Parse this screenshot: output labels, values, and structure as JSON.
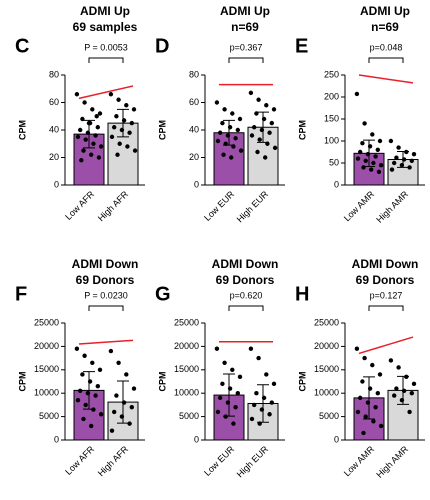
{
  "chart_data": [
    {
      "type": "bar",
      "panel": "C",
      "title": [
        "ADMI Up",
        "69 samples"
      ],
      "ylabel": "CPM",
      "annotation": "P = 0.0053",
      "categories": [
        "Low AFR",
        "High AFR"
      ],
      "values": [
        37,
        45
      ],
      "errors": [
        10,
        10
      ],
      "colors": [
        "#9b4fa8",
        "#d9d9d9"
      ],
      "points": [
        [
          66,
          60,
          55,
          52,
          48,
          45,
          42,
          40,
          38,
          36,
          35,
          33,
          30,
          28,
          25,
          22,
          20,
          18,
          45,
          50
        ],
        [
          66,
          62,
          58,
          55,
          50,
          47,
          45,
          42,
          40,
          38,
          35,
          30,
          28,
          25,
          22
        ]
      ],
      "trend_line": {
        "color": "#e8202a",
        "values": [
          63,
          72
        ]
      },
      "ylim": [
        0,
        80
      ],
      "yticks": [
        0,
        20,
        40,
        60,
        80
      ]
    },
    {
      "type": "bar",
      "panel": "D",
      "title": [
        "ADMI Up",
        "n=69"
      ],
      "ylabel": "CPM",
      "annotation": "p=0.367",
      "categories": [
        "Low EUR",
        "High EUR"
      ],
      "values": [
        38,
        42
      ],
      "errors": [
        9,
        11
      ],
      "colors": [
        "#9b4fa8",
        "#d9d9d9"
      ],
      "points": [
        [
          60,
          55,
          52,
          48,
          45,
          42,
          40,
          38,
          36,
          34,
          32,
          30,
          28,
          25,
          22,
          20
        ],
        [
          67,
          62,
          58,
          55,
          52,
          48,
          45,
          42,
          40,
          38,
          36,
          33,
          30,
          27,
          24,
          20
        ]
      ],
      "trend_line": {
        "color": "#e8202a",
        "values": [
          73,
          73
        ]
      },
      "ylim": [
        0,
        80
      ],
      "yticks": [
        0,
        20,
        40,
        60,
        80
      ]
    },
    {
      "type": "bar",
      "panel": "E",
      "title": [
        "ADMI Up",
        "n=69"
      ],
      "ylabel": "CPM",
      "annotation": "p=0.048",
      "categories": [
        "Low AMR",
        "High AMR"
      ],
      "values": [
        72,
        58
      ],
      "errors": [
        30,
        18
      ],
      "colors": [
        "#9b4fa8",
        "#d9d9d9"
      ],
      "points": [
        [
          207,
          140,
          115,
          100,
          95,
          88,
          80,
          75,
          70,
          65,
          60,
          55,
          50,
          45,
          40,
          35,
          30
        ],
        [
          100,
          85,
          75,
          70,
          62,
          58,
          55,
          50,
          45,
          40,
          35
        ]
      ],
      "trend_line": {
        "color": "#e8202a",
        "values": [
          250,
          232
        ]
      },
      "ylim": [
        0,
        250
      ],
      "yticks": [
        0,
        50,
        100,
        150,
        200,
        250
      ]
    },
    {
      "type": "bar",
      "panel": "F",
      "title": [
        "ADMI Down",
        "69 Donors"
      ],
      "ylabel": "CPM",
      "annotation": "P = 0.0230",
      "categories": [
        "Low AFR",
        "High AFR"
      ],
      "values": [
        10600,
        8100
      ],
      "errors": [
        4000,
        4500
      ],
      "colors": [
        "#9b4fa8",
        "#d9d9d9"
      ],
      "points": [
        [
          19500,
          18000,
          16500,
          15000,
          14000,
          12500,
          11500,
          10500,
          10000,
          9500,
          8500,
          7500,
          6500,
          5500,
          4500,
          3000
        ],
        [
          19000,
          16500,
          14000,
          11000,
          9500,
          8000,
          7000,
          6000,
          5000,
          3500,
          2000
        ]
      ],
      "trend_line": {
        "color": "#e8202a",
        "values": [
          20500,
          21300
        ]
      },
      "ylim": [
        0,
        25000
      ],
      "yticks": [
        0,
        5000,
        10000,
        15000,
        20000,
        25000
      ]
    },
    {
      "type": "bar",
      "panel": "G",
      "title": [
        "ADMI Down",
        "69 Donors"
      ],
      "ylabel": "CPM",
      "annotation": "p=0.620",
      "categories": [
        "Low EUR",
        "High EUR"
      ],
      "values": [
        9600,
        7800
      ],
      "errors": [
        4500,
        4000
      ],
      "colors": [
        "#9b4fa8",
        "#d9d9d9"
      ],
      "points": [
        [
          19500,
          16500,
          15000,
          13500,
          12000,
          11000,
          10000,
          9000,
          8000,
          7000,
          6000,
          5000,
          3500
        ],
        [
          19500,
          17500,
          14000,
          12000,
          10000,
          9000,
          8000,
          7500,
          6500,
          5500,
          4500,
          3500
        ]
      ],
      "trend_line": {
        "color": "#e8202a",
        "values": [
          21000,
          21000
        ]
      },
      "ylim": [
        0,
        25000
      ],
      "yticks": [
        0,
        5000,
        10000,
        15000,
        20000,
        25000
      ]
    },
    {
      "type": "bar",
      "panel": "H",
      "title": [
        "ADMI Down",
        "69 Donors"
      ],
      "ylabel": "CPM",
      "annotation": "p=0.127",
      "categories": [
        "Low AMR",
        "High AMR"
      ],
      "values": [
        9000,
        10600
      ],
      "errors": [
        4500,
        3000
      ],
      "colors": [
        "#9b4fa8",
        "#d9d9d9"
      ],
      "points": [
        [
          19500,
          17500,
          16000,
          14000,
          12500,
          11000,
          10000,
          9000,
          8000,
          7000,
          6000,
          5000,
          4000,
          3000,
          1500
        ],
        [
          17000,
          15500,
          13500,
          12000,
          11000,
          10500,
          10000,
          9500,
          8500,
          6000
        ]
      ],
      "trend_line": {
        "color": "#e8202a",
        "values": [
          18500,
          22000
        ]
      },
      "ylim": [
        0,
        25000
      ],
      "yticks": [
        0,
        5000,
        10000,
        15000,
        20000,
        25000
      ]
    }
  ]
}
